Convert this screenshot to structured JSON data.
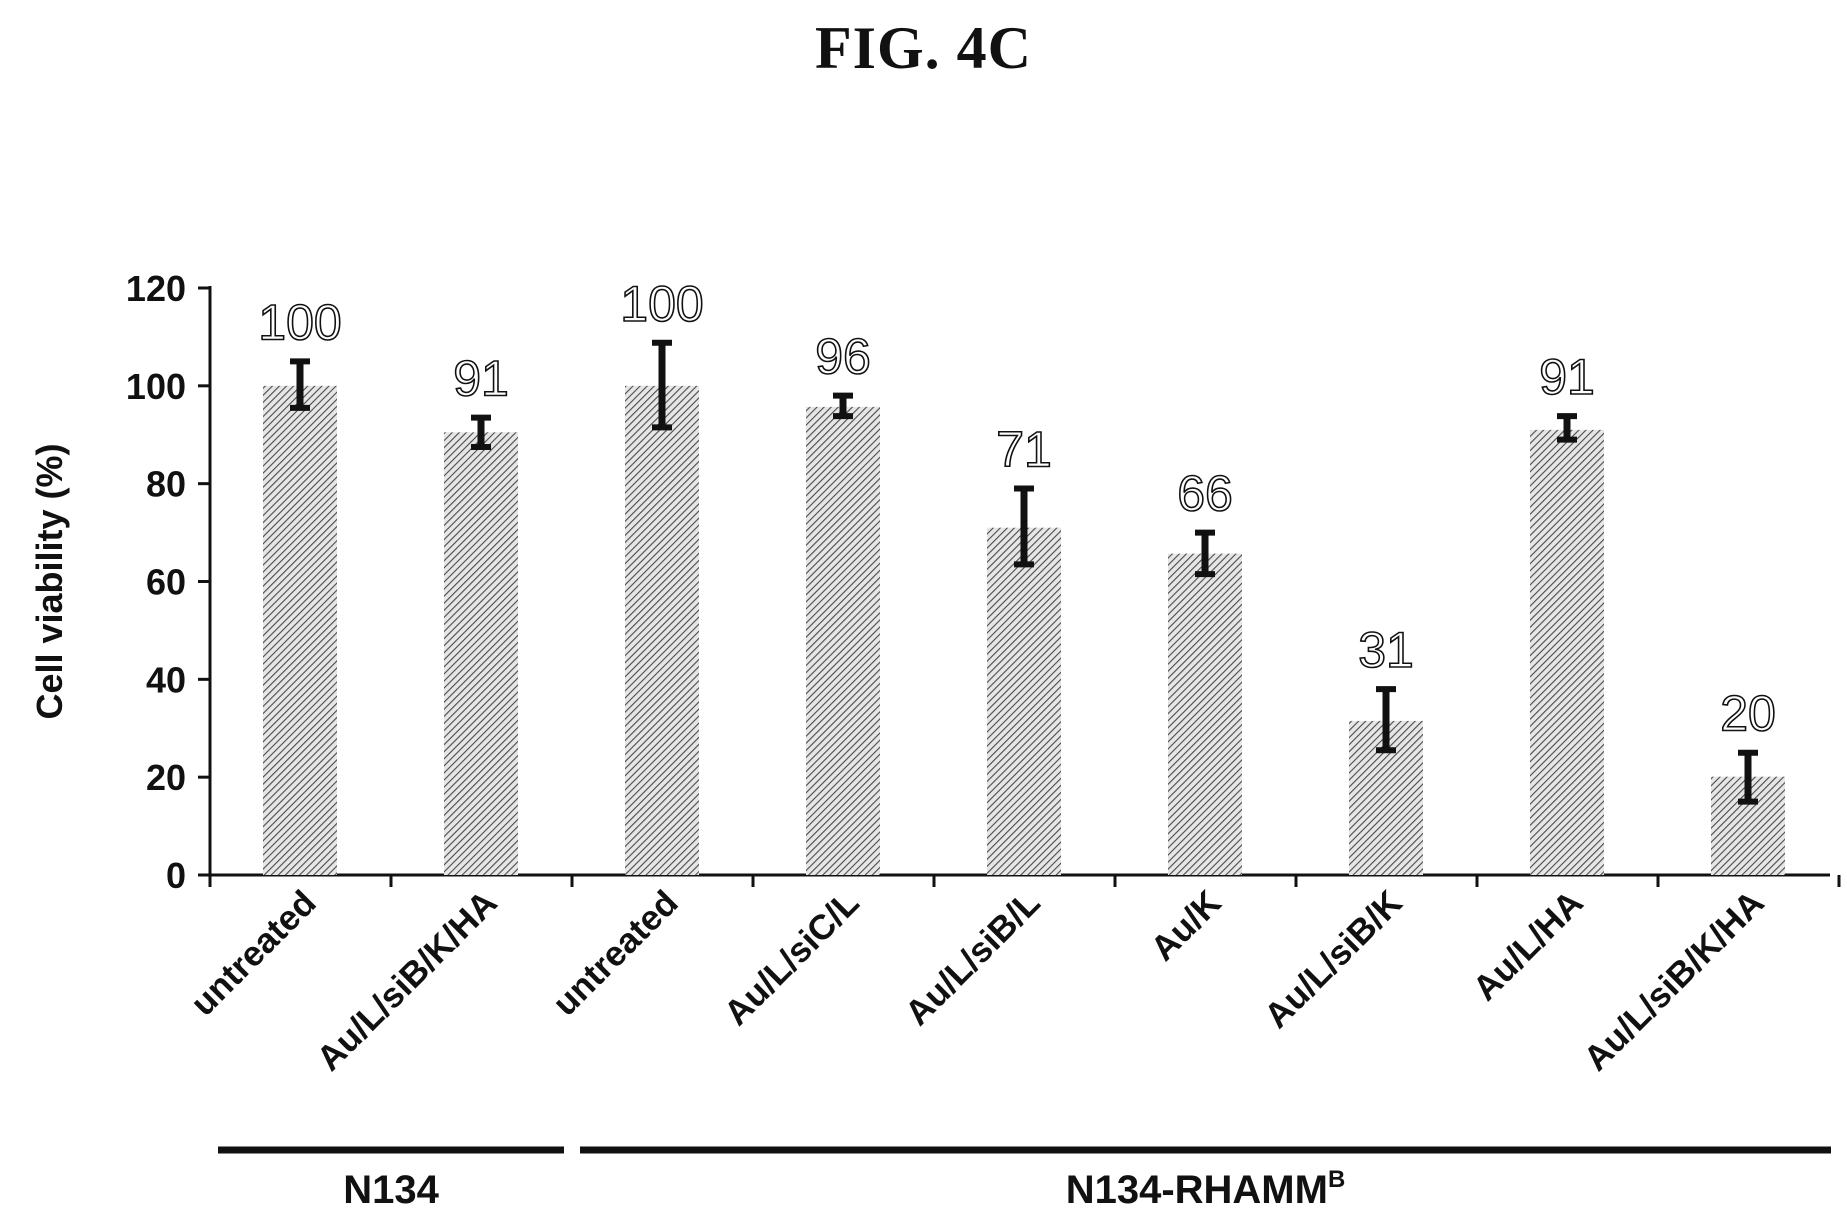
{
  "figure": {
    "title": "FIG. 4C"
  },
  "chart_data": {
    "type": "bar",
    "title": "",
    "xlabel": "",
    "ylabel": "Cell viability (%)",
    "ylim": [
      0,
      120
    ],
    "yticks": [
      0,
      20,
      40,
      60,
      80,
      100,
      120
    ],
    "grid": false,
    "categories": [
      "untreated",
      "Au/L/siB/K/HA",
      "untreated",
      "Au/L/siC/L",
      "Au/L/siB/L",
      "Au/K",
      "Au/L/siB/K",
      "Au/L/HA",
      "Au/L/siB/K/HA"
    ],
    "values": [
      100,
      90.5,
      100,
      95.7,
      71,
      65.7,
      31.5,
      91,
      20.1
    ],
    "data_labels": [
      "100",
      "91",
      "100",
      "96",
      "71",
      "66",
      "31",
      "91",
      "20"
    ],
    "error_bars": [
      {
        "low": 95.5,
        "high": 105
      },
      {
        "low": 87.5,
        "high": 93.5
      },
      {
        "low": 91.5,
        "high": 108.8
      },
      {
        "low": 93.8,
        "high": 98
      },
      {
        "low": 63.5,
        "high": 79
      },
      {
        "low": 61.5,
        "high": 70
      },
      {
        "low": 25.5,
        "high": 38
      },
      {
        "low": 89,
        "high": 93.8
      },
      {
        "low": 15,
        "high": 25
      }
    ],
    "groups": [
      {
        "name": "N134",
        "sup": "",
        "start": 0,
        "end": 1
      },
      {
        "name": "N134-RHAMM",
        "sup": "B",
        "start": 2,
        "end": 8
      }
    ]
  }
}
